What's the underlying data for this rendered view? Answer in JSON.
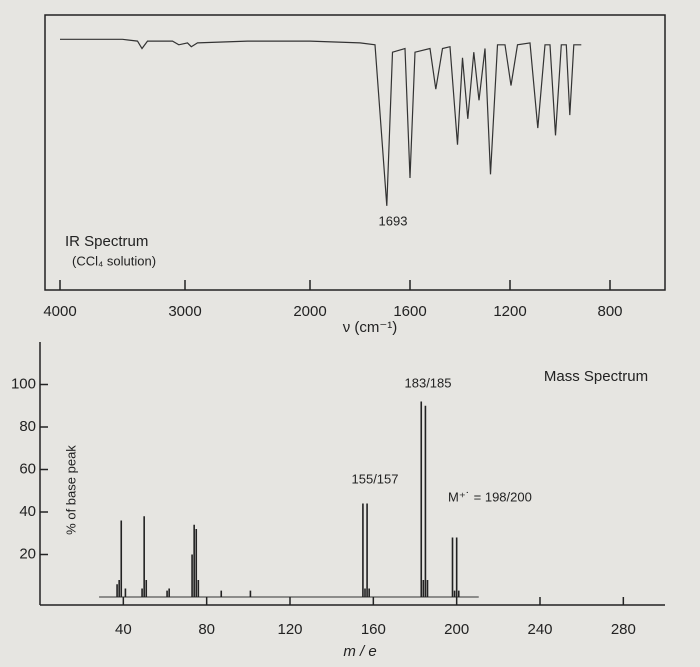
{
  "chart_data": [
    {
      "type": "line",
      "title": "IR Spectrum",
      "subtitle": "(CCl₄ solution)",
      "x_label": "ν (cm⁻¹)",
      "annotations": [
        "1693"
      ],
      "x": [
        4000,
        3500,
        3380,
        3344,
        3300,
        3100,
        3050,
        2980,
        2950,
        2900,
        2500,
        2000,
        1800,
        1740,
        1693,
        1670,
        1620,
        1600,
        1580,
        1520,
        1497,
        1470,
        1440,
        1410,
        1390,
        1369,
        1345,
        1324,
        1300,
        1278,
        1250,
        1220,
        1196,
        1170,
        1120,
        1089,
        1060,
        1040,
        1018,
        995,
        975,
        961,
        945,
        915
      ],
      "values": [
        95,
        95,
        94,
        90,
        94,
        94,
        92,
        93,
        91,
        93,
        94,
        94,
        93,
        92,
        5,
        88,
        90,
        20,
        88,
        90,
        68,
        90,
        91,
        38,
        85,
        52,
        88,
        62,
        90,
        22,
        92,
        92,
        70,
        92,
        93,
        47,
        92,
        92,
        43,
        92,
        92,
        54,
        92,
        92
      ],
      "xlim": [
        4000,
        600
      ],
      "xticks": [
        4000,
        3000,
        2000,
        1600,
        1200,
        800
      ],
      "ylim": [
        0,
        100
      ],
      "color": "#333333"
    },
    {
      "type": "bar",
      "title": "Mass Spectrum",
      "x_label": "m / e",
      "y_label": "% of base peak",
      "annotations": [
        "183/185",
        "155/157",
        "M⁺˙ = 198/200"
      ],
      "x": [
        37,
        38,
        39,
        41,
        49,
        50,
        51,
        61,
        62,
        73,
        74,
        75,
        76,
        87,
        101,
        155,
        156,
        157,
        158,
        183,
        184,
        185,
        186,
        198,
        199,
        200,
        201
      ],
      "values": [
        6,
        8,
        36,
        4,
        4,
        38,
        8,
        3,
        4,
        20,
        34,
        32,
        8,
        3,
        3,
        44,
        4,
        44,
        4,
        92,
        8,
        90,
        8,
        28,
        3,
        28,
        3
      ],
      "xlim": [
        0,
        300
      ],
      "ylim": [
        0,
        120
      ],
      "xticks": [
        40,
        80,
        120,
        160,
        200,
        240,
        280
      ],
      "yticks": [
        20,
        40,
        60,
        80,
        100
      ],
      "color": "#222222"
    }
  ]
}
